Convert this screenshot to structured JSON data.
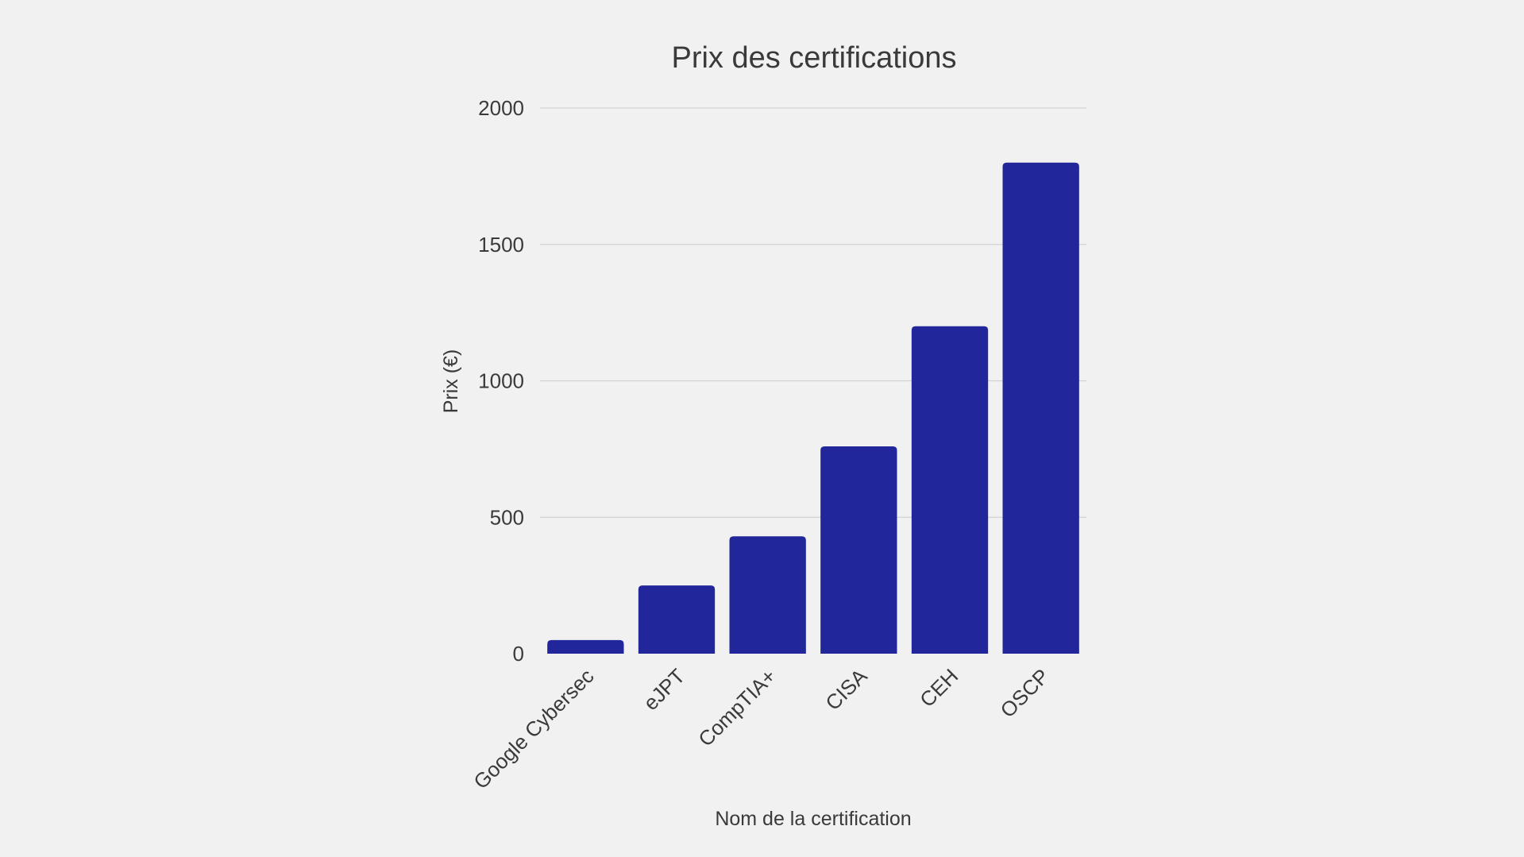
{
  "chart_data": {
    "type": "bar",
    "title": "Prix des certifications",
    "xlabel": "Nom de la certification",
    "ylabel": "Prix (€)",
    "categories": [
      "Google Cybersec",
      "eJPT",
      "CompTIA+",
      "CISA",
      "CEH",
      "OSCP"
    ],
    "values": [
      50,
      250,
      430,
      760,
      1200,
      1800
    ],
    "ylim": [
      0,
      2000
    ],
    "yticks": [
      0,
      500,
      1000,
      1500,
      2000
    ],
    "bar_color": "#21279a",
    "grid": true,
    "legend": "none"
  }
}
